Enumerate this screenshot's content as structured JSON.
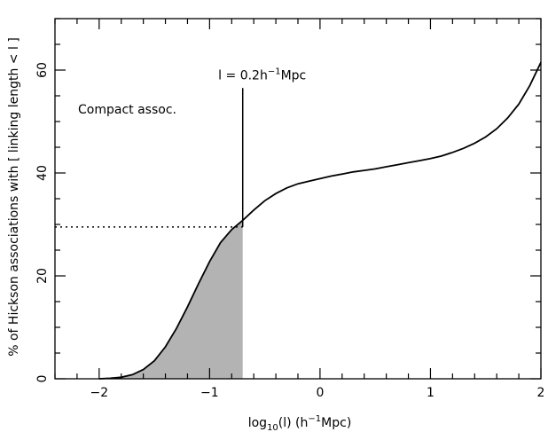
{
  "chart_data": {
    "type": "line",
    "xlabel": {
      "base": "log",
      "sub": "10",
      "mid": "(l)  (h",
      "sup": "−1",
      "tail": "Mpc)"
    },
    "ylabel": "% of Hickson associations with [ linking length < l ]",
    "xlim": [
      -2.4,
      2.0
    ],
    "ylim": [
      0,
      70
    ],
    "xticks": [
      -2,
      -1,
      0,
      1,
      2
    ],
    "xtick_labels": [
      "−2",
      "−1",
      "0",
      "1",
      "2"
    ],
    "yticks": [
      0,
      20,
      40,
      60
    ],
    "ytick_labels": [
      "0",
      "20",
      "40",
      "60"
    ],
    "grid": false,
    "colors": {
      "curve": "#000000",
      "shade": "#b3b3b3"
    },
    "curve": {
      "x": [
        -2.0,
        -1.9,
        -1.8,
        -1.7,
        -1.6,
        -1.5,
        -1.4,
        -1.3,
        -1.2,
        -1.1,
        -1.0,
        -0.9,
        -0.8,
        -0.7,
        -0.6,
        -0.5,
        -0.4,
        -0.3,
        -0.2,
        -0.1,
        0.0,
        0.1,
        0.2,
        0.3,
        0.4,
        0.5,
        0.6,
        0.7,
        0.8,
        0.9,
        1.0,
        1.1,
        1.2,
        1.3,
        1.4,
        1.5,
        1.6,
        1.7,
        1.8,
        1.9,
        2.0
      ],
      "y": [
        0.0,
        0.1,
        0.3,
        0.8,
        1.8,
        3.5,
        6.2,
        9.8,
        14.0,
        18.5,
        22.8,
        26.5,
        29.0,
        30.8,
        32.8,
        34.6,
        36.0,
        37.1,
        37.9,
        38.4,
        38.9,
        39.4,
        39.8,
        40.2,
        40.5,
        40.8,
        41.2,
        41.6,
        42.0,
        42.4,
        42.8,
        43.3,
        44.0,
        44.8,
        45.8,
        47.0,
        48.6,
        50.7,
        53.4,
        57.0,
        61.5
      ]
    },
    "annotations": {
      "threshold_label": {
        "pre": "l = 0.2h",
        "sup": "−1",
        "post": "Mpc"
      },
      "threshold_x": -0.7,
      "threshold_y": 29.5,
      "marker_line_top_y": 56.5,
      "region_label": "Compact assoc."
    }
  }
}
